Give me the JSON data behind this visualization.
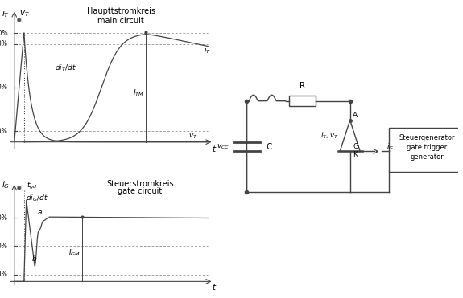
{
  "line_color": "#444444",
  "title_top1": "Haupttstromkreis",
  "title_top2": "main circuit",
  "title_bot1": "Steuerstromkreis",
  "title_bot2": "gate circuit",
  "box_label": "Steuergenerator\ngate trigger\ngenerator",
  "font_size": 6.5,
  "tgd_label": "$t_{gd}$",
  "ITM_label": "$I_{TM}$",
  "IGM_label": "$I_{GM}$",
  "diTdt_label": "$di_T/dt$",
  "diGdt_label": "$di_G/dt$"
}
